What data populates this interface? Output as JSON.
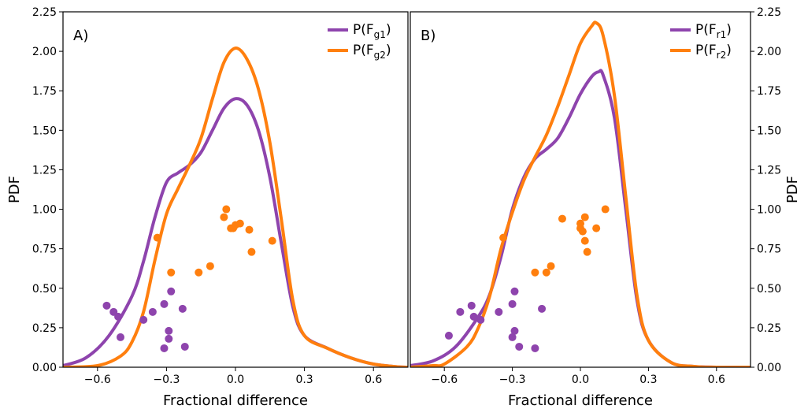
{
  "colors": {
    "purple": "#8e44ad",
    "orange": "#ff7f0e",
    "axis": "#000000"
  },
  "figure": {
    "y_label": "PDF",
    "x_label": "Fractional difference",
    "y_ticks": [
      "0.00",
      "0.25",
      "0.50",
      "0.75",
      "1.00",
      "1.25",
      "1.50",
      "1.75",
      "2.00",
      "2.25"
    ],
    "x_ticks": [
      "−0.6",
      "−0.3",
      "0.0",
      "0.3",
      "0.6"
    ]
  },
  "chart_data": [
    {
      "type": "line",
      "panel": "A)",
      "xlabel": "Fractional difference",
      "ylabel": "PDF",
      "xlim": [
        -0.75,
        0.75
      ],
      "ylim": [
        0,
        2.25
      ],
      "xticks": [
        -0.6,
        -0.3,
        0.0,
        0.3,
        0.6
      ],
      "yticks": [
        0,
        0.25,
        0.5,
        0.75,
        1.0,
        1.25,
        1.5,
        1.75,
        2.0,
        2.25
      ],
      "legend_position": "top-right",
      "grid": false,
      "series": [
        {
          "legend_main": "P(F",
          "legend_sub": "g1",
          "legend_tail": ")",
          "color": "#8e44ad",
          "x": [
            -0.75,
            -0.65,
            -0.55,
            -0.45,
            -0.4,
            -0.35,
            -0.3,
            -0.25,
            -0.2,
            -0.15,
            -0.1,
            -0.05,
            0.0,
            0.05,
            0.1,
            0.15,
            0.2,
            0.25,
            0.3,
            0.4,
            0.5,
            0.6,
            0.7,
            0.75
          ],
          "y": [
            0.01,
            0.06,
            0.2,
            0.45,
            0.67,
            0.95,
            1.17,
            1.23,
            1.28,
            1.36,
            1.5,
            1.64,
            1.7,
            1.66,
            1.5,
            1.2,
            0.78,
            0.38,
            0.2,
            0.12,
            0.06,
            0.02,
            0.003,
            0.0
          ]
        },
        {
          "legend_main": "P(F",
          "legend_sub": "g2",
          "legend_tail": ")",
          "color": "#ff7f0e",
          "x": [
            -0.75,
            -0.6,
            -0.5,
            -0.45,
            -0.4,
            -0.35,
            -0.3,
            -0.25,
            -0.2,
            -0.15,
            -0.1,
            -0.05,
            0.0,
            0.05,
            0.1,
            0.15,
            0.2,
            0.25,
            0.3,
            0.4,
            0.5,
            0.6,
            0.7,
            0.75
          ],
          "y": [
            0.0,
            0.01,
            0.07,
            0.16,
            0.35,
            0.68,
            0.97,
            1.13,
            1.28,
            1.45,
            1.7,
            1.93,
            2.02,
            1.95,
            1.76,
            1.42,
            0.93,
            0.42,
            0.2,
            0.12,
            0.06,
            0.02,
            0.003,
            0.0
          ]
        }
      ],
      "scatter": [
        {
          "color": "#8e44ad",
          "points": [
            [
              -0.56,
              0.39
            ],
            [
              -0.53,
              0.35
            ],
            [
              -0.51,
              0.32
            ],
            [
              -0.5,
              0.19
            ],
            [
              -0.4,
              0.3
            ],
            [
              -0.36,
              0.35
            ],
            [
              -0.31,
              0.4
            ],
            [
              -0.28,
              0.48
            ],
            [
              -0.23,
              0.37
            ],
            [
              -0.29,
              0.23
            ],
            [
              -0.29,
              0.18
            ],
            [
              -0.31,
              0.12
            ],
            [
              -0.22,
              0.13
            ]
          ]
        },
        {
          "color": "#ff7f0e",
          "points": [
            [
              -0.34,
              0.82
            ],
            [
              -0.28,
              0.6
            ],
            [
              -0.16,
              0.6
            ],
            [
              -0.11,
              0.64
            ],
            [
              -0.05,
              0.95
            ],
            [
              -0.04,
              1.0
            ],
            [
              -0.02,
              0.88
            ],
            [
              -0.01,
              0.88
            ],
            [
              0.0,
              0.9
            ],
            [
              0.02,
              0.91
            ],
            [
              0.06,
              0.87
            ],
            [
              0.07,
              0.73
            ],
            [
              0.16,
              0.8
            ]
          ]
        }
      ]
    },
    {
      "type": "line",
      "panel": "B)",
      "xlabel": "Fractional difference",
      "ylabel": "PDF",
      "xlim": [
        -0.75,
        0.75
      ],
      "ylim": [
        0,
        2.25
      ],
      "xticks": [
        -0.6,
        -0.3,
        0.0,
        0.3,
        0.6
      ],
      "yticks": [
        0,
        0.25,
        0.5,
        0.75,
        1.0,
        1.25,
        1.5,
        1.75,
        2.0,
        2.25
      ],
      "legend_position": "top-right",
      "grid": false,
      "series": [
        {
          "legend_main": "P(F",
          "legend_sub": "r1",
          "legend_tail": ")",
          "color": "#8e44ad",
          "x": [
            -0.75,
            -0.65,
            -0.55,
            -0.45,
            -0.4,
            -0.35,
            -0.3,
            -0.25,
            -0.2,
            -0.15,
            -0.1,
            -0.05,
            0.0,
            0.05,
            0.08,
            0.1,
            0.15,
            0.2,
            0.25,
            0.3,
            0.4,
            0.5,
            0.6,
            0.7,
            0.75
          ],
          "y": [
            0.01,
            0.04,
            0.13,
            0.32,
            0.46,
            0.7,
            1.0,
            1.2,
            1.32,
            1.38,
            1.45,
            1.58,
            1.73,
            1.84,
            1.87,
            1.85,
            1.58,
            1.0,
            0.42,
            0.17,
            0.03,
            0.005,
            0.0,
            0.0,
            0.0
          ]
        },
        {
          "legend_main": "P(F",
          "legend_sub": "r2",
          "legend_tail": ")",
          "color": "#ff7f0e",
          "x": [
            -0.75,
            -0.65,
            -0.6,
            -0.5,
            -0.45,
            -0.4,
            -0.35,
            -0.3,
            -0.25,
            -0.2,
            -0.15,
            -0.1,
            -0.05,
            0.0,
            0.05,
            0.07,
            0.1,
            0.15,
            0.2,
            0.25,
            0.3,
            0.4,
            0.5,
            0.6,
            0.75
          ],
          "y": [
            0.0,
            0.01,
            0.02,
            0.13,
            0.25,
            0.45,
            0.75,
            0.98,
            1.18,
            1.33,
            1.47,
            1.65,
            1.85,
            2.05,
            2.16,
            2.18,
            2.1,
            1.72,
            1.08,
            0.45,
            0.17,
            0.03,
            0.005,
            0.0,
            0.0
          ]
        }
      ],
      "scatter": [
        {
          "color": "#8e44ad",
          "points": [
            [
              -0.58,
              0.2
            ],
            [
              -0.53,
              0.35
            ],
            [
              -0.48,
              0.39
            ],
            [
              -0.47,
              0.32
            ],
            [
              -0.44,
              0.3
            ],
            [
              -0.36,
              0.35
            ],
            [
              -0.3,
              0.4
            ],
            [
              -0.29,
              0.48
            ],
            [
              -0.29,
              0.23
            ],
            [
              -0.3,
              0.19
            ],
            [
              -0.27,
              0.13
            ],
            [
              -0.2,
              0.12
            ],
            [
              -0.17,
              0.37
            ]
          ]
        },
        {
          "color": "#ff7f0e",
          "points": [
            [
              -0.34,
              0.82
            ],
            [
              -0.2,
              0.6
            ],
            [
              -0.15,
              0.6
            ],
            [
              -0.13,
              0.64
            ],
            [
              -0.08,
              0.94
            ],
            [
              0.0,
              0.91
            ],
            [
              0.0,
              0.88
            ],
            [
              0.01,
              0.86
            ],
            [
              0.02,
              0.95
            ],
            [
              0.02,
              0.8
            ],
            [
              0.03,
              0.73
            ],
            [
              0.07,
              0.88
            ],
            [
              0.11,
              1.0
            ]
          ]
        }
      ]
    }
  ]
}
